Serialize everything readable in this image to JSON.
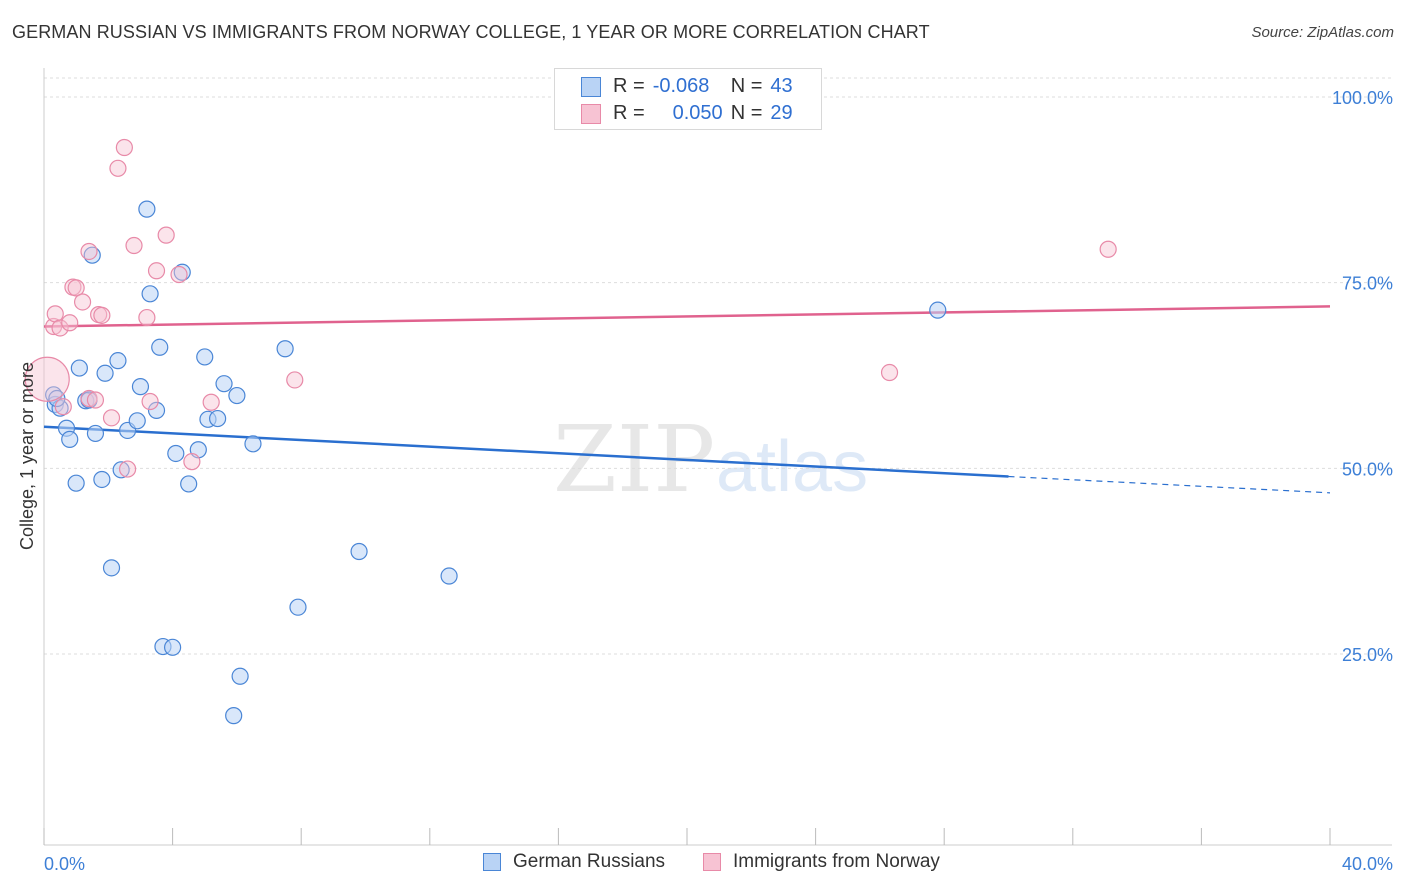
{
  "title": "GERMAN RUSSIAN VS IMMIGRANTS FROM NORWAY COLLEGE, 1 YEAR OR MORE CORRELATION CHART",
  "source": "Source: ZipAtlas.com",
  "watermark": {
    "zip": "ZIP",
    "atlas": "atlas"
  },
  "colors": {
    "blue": "#4a86d6",
    "blue_fill": "#b9d3f5",
    "blue_line": "#2a6fcf",
    "pink": "#e88aa8",
    "pink_fill": "#f7c3d3",
    "pink_line": "#e0628e",
    "grid": "#dddddd",
    "axis_text": "#3d7fd6"
  },
  "legend_top": {
    "rows": [
      {
        "r_label": "R =",
        "r_value": "-0.068",
        "n_label": "N =",
        "n_value": "43"
      },
      {
        "r_label": "R =",
        "r_value": "0.050",
        "n_label": "N =",
        "n_value": "29"
      }
    ]
  },
  "legend_bottom": {
    "items": [
      "German Russians",
      "Immigrants from Norway"
    ]
  },
  "chart_data": {
    "type": "scatter",
    "title": "GERMAN RUSSIAN VS IMMIGRANTS FROM NORWAY COLLEGE, 1 YEAR OR MORE CORRELATION CHART",
    "xlabel": "",
    "ylabel": "College, 1 year or more",
    "xlim": [
      0,
      40
    ],
    "ylim": [
      0,
      103
    ],
    "x_tick_labels": [
      "0.0%",
      "40.0%"
    ],
    "y_ticks": [
      25,
      50,
      75,
      100
    ],
    "y_tick_labels": [
      "25.0%",
      "50.0%",
      "75.0%",
      "100.0%"
    ],
    "series": [
      {
        "name": "German Russians",
        "r": -0.068,
        "n": 43,
        "trend": {
          "x_solid": [
            0,
            30
          ],
          "y_solid": [
            55.6,
            48.9
          ],
          "x_dashed": [
            30,
            40
          ],
          "y_dashed": [
            48.9,
            46.7
          ]
        },
        "points": [
          [
            0.3,
            59.9
          ],
          [
            0.35,
            58.6
          ],
          [
            0.5,
            58.1
          ],
          [
            0.7,
            55.4
          ],
          [
            0.8,
            53.9
          ],
          [
            1.0,
            48.0
          ],
          [
            1.1,
            63.5
          ],
          [
            1.3,
            59.1
          ],
          [
            1.5,
            78.7
          ],
          [
            1.6,
            54.7
          ],
          [
            1.8,
            48.5
          ],
          [
            1.9,
            62.8
          ],
          [
            2.1,
            36.6
          ],
          [
            2.3,
            64.5
          ],
          [
            2.4,
            49.8
          ],
          [
            2.6,
            55.1
          ],
          [
            2.9,
            56.4
          ],
          [
            3.0,
            61.0
          ],
          [
            3.2,
            84.9
          ],
          [
            3.3,
            73.5
          ],
          [
            3.5,
            57.8
          ],
          [
            3.6,
            66.3
          ],
          [
            3.7,
            26.0
          ],
          [
            4.0,
            25.9
          ],
          [
            4.1,
            52.0
          ],
          [
            4.3,
            76.4
          ],
          [
            4.5,
            47.9
          ],
          [
            4.8,
            52.5
          ],
          [
            5.0,
            65.0
          ],
          [
            5.1,
            56.6
          ],
          [
            5.4,
            56.7
          ],
          [
            5.6,
            61.4
          ],
          [
            6.0,
            59.8
          ],
          [
            5.9,
            16.7
          ],
          [
            6.1,
            22.0
          ],
          [
            6.5,
            53.3
          ],
          [
            7.5,
            66.1
          ],
          [
            7.9,
            31.3
          ],
          [
            9.8,
            38.8
          ],
          [
            12.6,
            35.5
          ],
          [
            0.4,
            59.4
          ],
          [
            1.4,
            59.2
          ],
          [
            27.8,
            71.3
          ]
        ]
      },
      {
        "name": "Immigrants from Norway",
        "r": 0.05,
        "n": 29,
        "trend": {
          "x_solid": [
            0,
            40
          ],
          "y_solid": [
            69.1,
            71.8
          ]
        },
        "points": [
          [
            0.1,
            62.0
          ],
          [
            0.3,
            69.1
          ],
          [
            0.35,
            70.8
          ],
          [
            0.5,
            68.9
          ],
          [
            0.6,
            58.3
          ],
          [
            0.8,
            69.6
          ],
          [
            0.9,
            74.4
          ],
          [
            1.0,
            74.3
          ],
          [
            1.2,
            72.4
          ],
          [
            1.4,
            59.4
          ],
          [
            1.4,
            79.2
          ],
          [
            1.6,
            59.2
          ],
          [
            1.7,
            70.7
          ],
          [
            1.8,
            70.6
          ],
          [
            2.1,
            56.8
          ],
          [
            2.3,
            90.4
          ],
          [
            2.5,
            93.2
          ],
          [
            2.6,
            49.9
          ],
          [
            2.8,
            80.0
          ],
          [
            3.2,
            70.3
          ],
          [
            3.3,
            59.0
          ],
          [
            3.5,
            76.6
          ],
          [
            3.8,
            81.4
          ],
          [
            4.2,
            76.1
          ],
          [
            4.6,
            50.9
          ],
          [
            5.2,
            58.9
          ],
          [
            7.8,
            61.9
          ],
          [
            26.3,
            62.9
          ],
          [
            33.1,
            79.5
          ]
        ]
      }
    ]
  }
}
